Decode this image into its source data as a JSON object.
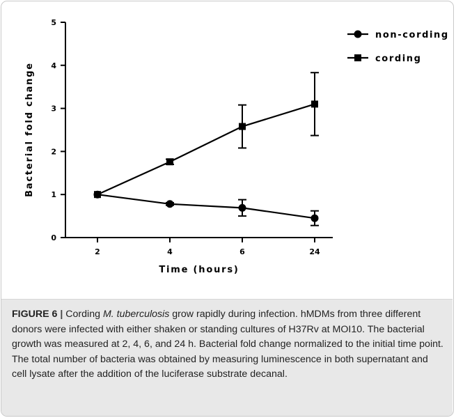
{
  "chart_data": {
    "type": "line",
    "title": "",
    "xlabel": "Time (hours)",
    "ylabel": "Bacterial fold change",
    "categories": [
      "2",
      "4",
      "6",
      "24"
    ],
    "ylim": [
      0,
      5
    ],
    "yticks": [
      "0",
      "1",
      "2",
      "3",
      "4",
      "5"
    ],
    "legend_position": "top-right",
    "series": [
      {
        "name": "non-cording",
        "marker": "circle",
        "values": [
          1.0,
          0.78,
          0.69,
          0.45
        ],
        "error": [
          0,
          0.03,
          0.19,
          0.17
        ]
      },
      {
        "name": "cording",
        "marker": "square",
        "values": [
          1.0,
          1.76,
          2.58,
          3.1
        ],
        "error": [
          0,
          0.06,
          0.5,
          0.73
        ]
      }
    ]
  },
  "caption": {
    "label": "FIGURE 6",
    "separator": " | ",
    "part1": "Cording ",
    "italic": "M. tuberculosis",
    "part2": " grow rapidly during infection. hMDMs from three different donors were infected with either shaken or standing cultures of H37Rv at MOI10. The bacterial growth was measured at 2, 4, 6, and 24 h. Bacterial fold change normalized to the initial time point. The total number of bacteria was obtained by measuring luminescence in both supernatant and cell lysate after the addition of the luciferase substrate decanal."
  }
}
